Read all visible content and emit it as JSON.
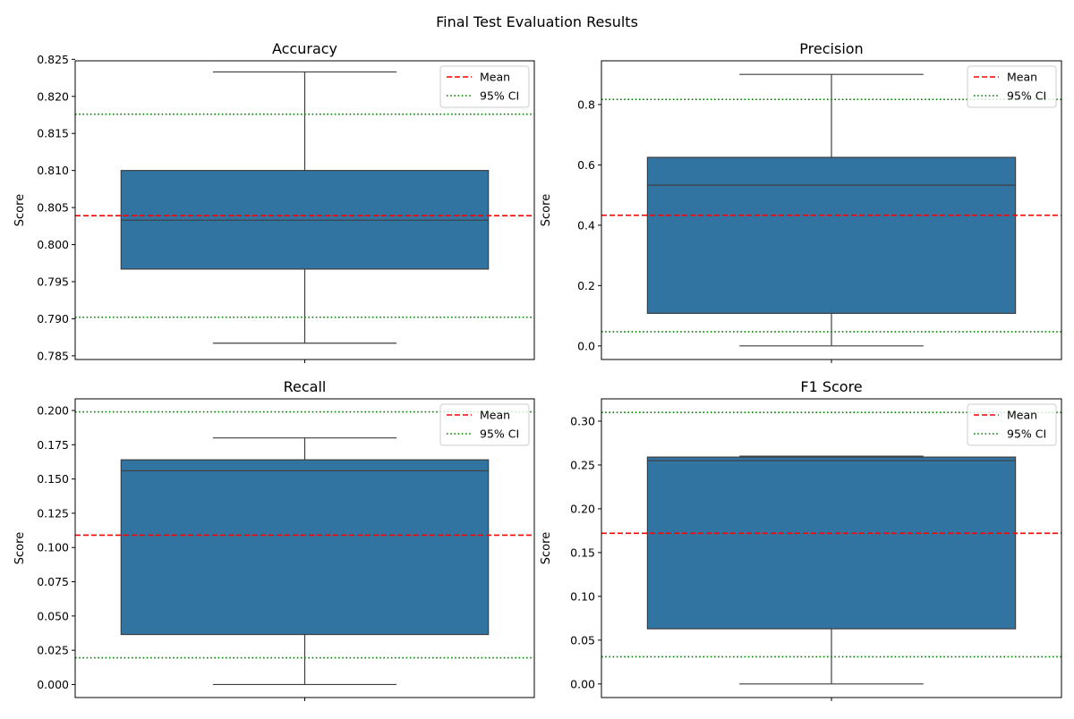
{
  "figure": {
    "suptitle": "Final Test Evaluation Results"
  },
  "legend": {
    "mean_label": "Mean",
    "ci_label": "95% CI",
    "mean_color": "#ff0000",
    "ci_color": "#008000"
  },
  "box_color": "#3274a1",
  "line_color": "#3f3f3f",
  "chart_data": [
    {
      "type": "box",
      "title": "Accuracy",
      "ylabel": "Score",
      "ylim": [
        0.7845,
        0.8248
      ],
      "ticks": [
        0.785,
        0.79,
        0.795,
        0.8,
        0.805,
        0.81,
        0.815,
        0.82,
        0.825
      ],
      "tick_labels": [
        "0.785",
        "0.790",
        "0.795",
        "0.800",
        "0.805",
        "0.810",
        "0.815",
        "0.820",
        "0.825"
      ],
      "box": {
        "whisker_low": 0.7867,
        "q1": 0.7967,
        "median": 0.8033,
        "q3": 0.81,
        "whisker_high": 0.8233
      },
      "mean": 0.8039,
      "ci": [
        0.7902,
        0.8176
      ],
      "legend_position": "upper right"
    },
    {
      "type": "box",
      "title": "Precision",
      "ylabel": "Score",
      "ylim": [
        -0.045,
        0.945
      ],
      "ticks": [
        0.0,
        0.2,
        0.4,
        0.6,
        0.8
      ],
      "tick_labels": [
        "0.0",
        "0.2",
        "0.4",
        "0.6",
        "0.8"
      ],
      "box": {
        "whisker_low": 0.0,
        "q1": 0.108,
        "median": 0.533,
        "q3": 0.625,
        "whisker_high": 0.9
      },
      "mean": 0.433,
      "ci": [
        0.047,
        0.817
      ],
      "legend_position": "upper right"
    },
    {
      "type": "box",
      "title": "Recall",
      "ylabel": "Score",
      "ylim": [
        -0.0095,
        0.2085
      ],
      "ticks": [
        0.0,
        0.025,
        0.05,
        0.075,
        0.1,
        0.125,
        0.15,
        0.175,
        0.2
      ],
      "tick_labels": [
        "0.000",
        "0.025",
        "0.050",
        "0.075",
        "0.100",
        "0.125",
        "0.150",
        "0.175",
        "0.200"
      ],
      "box": {
        "whisker_low": 0.0,
        "q1": 0.0365,
        "median": 0.156,
        "q3": 0.164,
        "whisker_high": 0.18
      },
      "mean": 0.109,
      "ci": [
        0.0195,
        0.199
      ],
      "legend_position": "upper right"
    },
    {
      "type": "box",
      "title": "F1 Score",
      "ylabel": "Score",
      "ylim": [
        -0.0155,
        0.3255
      ],
      "ticks": [
        0.0,
        0.05,
        0.1,
        0.15,
        0.2,
        0.25,
        0.3
      ],
      "tick_labels": [
        "0.00",
        "0.05",
        "0.10",
        "0.15",
        "0.20",
        "0.25",
        "0.30"
      ],
      "box": {
        "whisker_low": 0.0,
        "q1": 0.063,
        "median": 0.255,
        "q3": 0.259,
        "whisker_high": 0.26
      },
      "mean": 0.172,
      "ci": [
        0.031,
        0.31
      ],
      "legend_position": "upper right"
    }
  ]
}
